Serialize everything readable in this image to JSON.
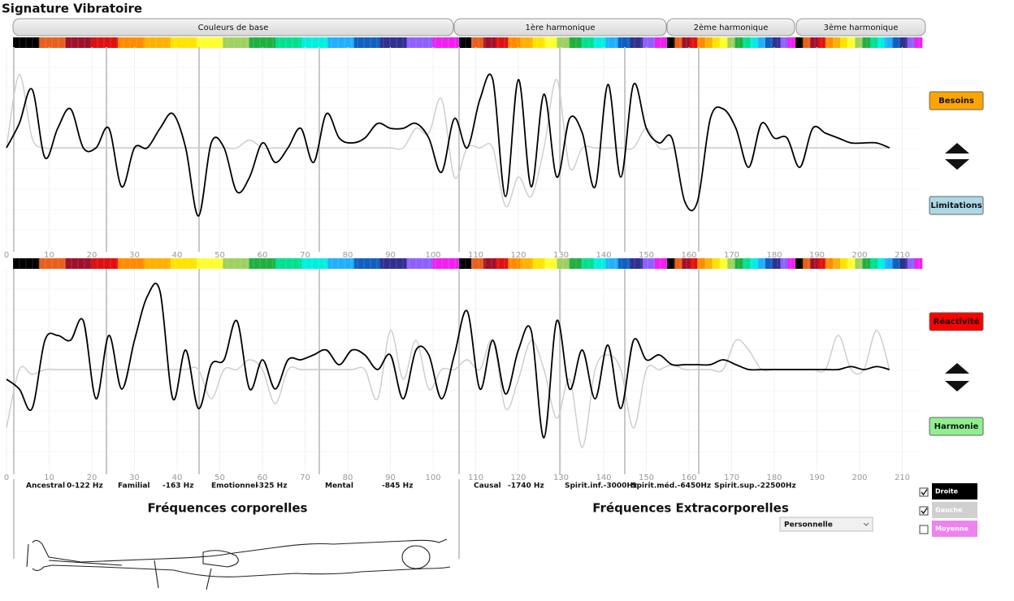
{
  "title": "Signature Vibratoire",
  "tabs": [
    "Couleurs de base",
    "1ère harmonique",
    "2ème harmonique",
    "3ème harmonique"
  ],
  "chart_data": [
    {
      "type": "line",
      "x": [
        0,
        3,
        6,
        9,
        12,
        15,
        18,
        21,
        24,
        27,
        30,
        33,
        36,
        39,
        42,
        45,
        48,
        51,
        54,
        57,
        60,
        63,
        66,
        69,
        72,
        75,
        78,
        81,
        84,
        87,
        90,
        93,
        96,
        99,
        102,
        105,
        108,
        111,
        114,
        117,
        120,
        123,
        126,
        129,
        132,
        135,
        138,
        141,
        144,
        147,
        150,
        153,
        156,
        159,
        162,
        165,
        168,
        171,
        174,
        177,
        180,
        183,
        186,
        189,
        192,
        195,
        198,
        201,
        204,
        207
      ],
      "xlim": [
        0,
        214
      ],
      "xticks": [
        0,
        10,
        20,
        30,
        40,
        50,
        60,
        70,
        80,
        90,
        100,
        110,
        120,
        130,
        140,
        150,
        160,
        170,
        180,
        190,
        200,
        210
      ],
      "ylim": [
        -1,
        1
      ],
      "series": [
        {
          "color": "#000000",
          "values": [
            0,
            0.25,
            0.6,
            -0.1,
            0.2,
            0.4,
            0,
            0,
            0.2,
            -0.4,
            0,
            0,
            0.2,
            0.35,
            0,
            -0.7,
            0.05,
            0,
            -0.45,
            -0.3,
            0.05,
            -0.15,
            0,
            0.2,
            -0.15,
            0.35,
            0.1,
            0.05,
            0.1,
            0.25,
            0.2,
            0.2,
            0.25,
            0.1,
            -0.25,
            0.3,
            0,
            0.5,
            0.7,
            -0.5,
            0.7,
            -0.4,
            0.55,
            -0.3,
            0.3,
            0.15,
            -0.4,
            0.65,
            -0.3,
            0.65,
            0.2,
            0.05,
            0.1,
            -0.55,
            -0.55,
            0.3,
            0.4,
            0.2,
            -0.2,
            0.25,
            0.1,
            0.1,
            -0.2,
            0.2,
            0.15,
            0.1,
            0.05,
            0.05,
            0.05,
            0
          ]
        },
        {
          "color": "#cccccc",
          "values": [
            0,
            0.75,
            0.1,
            0,
            0,
            0,
            0,
            0,
            0,
            0,
            0,
            0,
            0,
            0,
            0,
            0,
            0,
            0,
            0,
            0.08,
            0,
            0,
            0,
            0,
            0,
            0,
            0,
            0,
            0,
            0,
            0,
            0,
            0.2,
            0.15,
            0.5,
            -0.3,
            0,
            0,
            0,
            -0.6,
            -0.3,
            -0.5,
            0,
            0.7,
            -0.2,
            0,
            0,
            0,
            0,
            0,
            0.2,
            0,
            0,
            0,
            0,
            0,
            0,
            0,
            0,
            0,
            0,
            0,
            0,
            0,
            0,
            0,
            0,
            0,
            0,
            0
          ]
        }
      ]
    },
    {
      "type": "line",
      "x": [
        0,
        3,
        6,
        9,
        12,
        15,
        18,
        21,
        24,
        27,
        30,
        33,
        36,
        39,
        42,
        45,
        48,
        51,
        54,
        57,
        60,
        63,
        66,
        69,
        72,
        75,
        78,
        81,
        84,
        87,
        90,
        93,
        96,
        99,
        102,
        105,
        108,
        111,
        114,
        117,
        120,
        123,
        126,
        129,
        132,
        135,
        138,
        141,
        144,
        147,
        150,
        153,
        156,
        159,
        162,
        165,
        168,
        171,
        174,
        177,
        180,
        183,
        186,
        189,
        192,
        195,
        198,
        201,
        204,
        207
      ],
      "xlim": [
        0,
        214
      ],
      "xticks": [
        0,
        10,
        20,
        30,
        40,
        50,
        60,
        70,
        80,
        90,
        100,
        110,
        120,
        130,
        140,
        150,
        160,
        170,
        180,
        190,
        200,
        210
      ],
      "ylim": [
        -1,
        1
      ],
      "series": [
        {
          "color": "#000000",
          "values": [
            -0.1,
            -0.2,
            -0.4,
            0.3,
            0.35,
            0.3,
            0.5,
            -0.3,
            0.35,
            -0.2,
            0.3,
            0.75,
            0.8,
            -0.3,
            0.2,
            -0.4,
            0.05,
            0.1,
            0.5,
            -0.2,
            0.1,
            -0.2,
            0.1,
            0.1,
            0.15,
            0.2,
            0.05,
            0.2,
            0.15,
            0,
            0.15,
            -0.3,
            0.2,
            0.15,
            -0.3,
            0.15,
            0.6,
            -0.2,
            0.3,
            -0.25,
            0.2,
            0.4,
            -0.7,
            0.5,
            -0.2,
            0.2,
            -0.3,
            0.25,
            -0.4,
            0.3,
            0.1,
            0.15,
            0.05,
            0.05,
            0.05,
            0.05,
            0.1,
            0.05,
            0,
            0,
            0,
            0,
            0,
            0,
            0,
            0,
            0.03,
            0,
            0.03,
            0
          ]
        },
        {
          "color": "#cccccc",
          "values": [
            -0.6,
            0,
            -0.05,
            0,
            0,
            0,
            0,
            0,
            0,
            0,
            0,
            0,
            0,
            0,
            0,
            0,
            -0.3,
            0,
            0,
            0.1,
            0,
            -0.35,
            0,
            0,
            0,
            0,
            0,
            0,
            0,
            -0.3,
            0.4,
            -0.1,
            0.3,
            -0.2,
            0,
            0,
            0.1,
            0,
            0.3,
            -0.4,
            -0.1,
            0.3,
            0,
            -0.5,
            -0.1,
            -0.8,
            0,
            0.15,
            0,
            -0.6,
            0,
            0,
            0.05,
            0,
            0,
            0,
            0,
            0.3,
            0.2,
            0,
            0,
            0,
            0,
            0,
            0,
            0.35,
            0,
            0,
            0.4,
            0
          ]
        }
      ]
    }
  ],
  "buttons": [
    "Besoins",
    "Limitations",
    "Réactivité",
    "Harmonie"
  ],
  "sections": [
    "Ancestral",
    "0-122 Hz",
    "Familial",
    "-163 Hz",
    "Emotionnel",
    "-325 Hz",
    "Mental",
    "-845 Hz",
    "Causal",
    "-1740 Hz",
    "Spirit.inf.-3000Hz",
    "Spirit.méd.-6450Hz",
    "Spirit.sup.-22500Hz"
  ],
  "footer": {
    "left": "Fréquences corporelles",
    "right": "Fréquences Extracorporelles",
    "select": "Personnelle"
  },
  "legend": [
    {
      "label": "Droite",
      "checked": true,
      "color": "#000000"
    },
    {
      "label": "Gauche",
      "checked": true,
      "color": "#d0d0d0"
    },
    {
      "label": "Moyenne",
      "checked": false,
      "color": "#ee82ee"
    }
  ]
}
